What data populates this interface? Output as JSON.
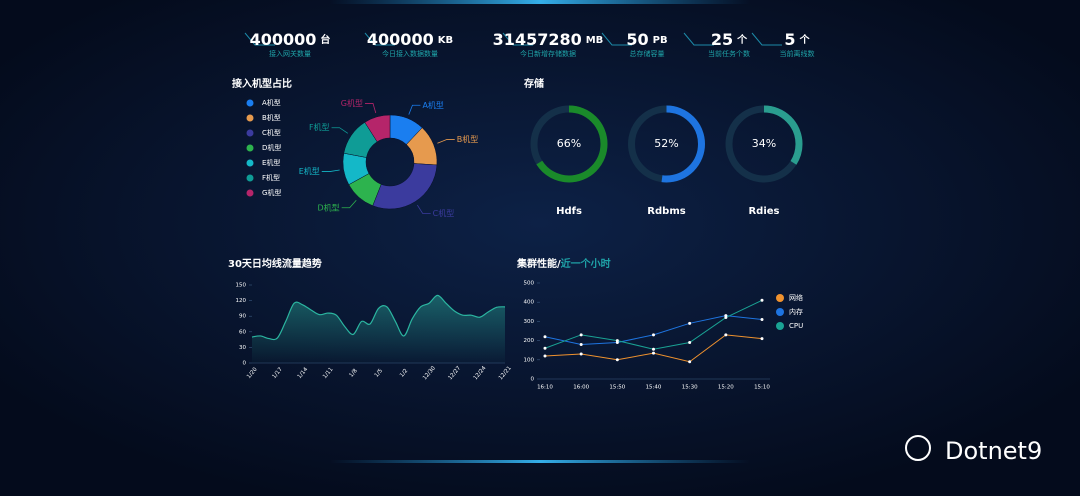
{
  "header": {
    "kpis": [
      {
        "value": "400000",
        "unit": "台",
        "label": "接入网关数量"
      },
      {
        "value": "400000",
        "unit": "KB",
        "label": "今日接入数据数量"
      },
      {
        "value": "31457280",
        "unit": "MB",
        "label": "今日新增存储数据"
      },
      {
        "value": "50",
        "unit": "PB",
        "label": "总存储容量"
      },
      {
        "value": "25",
        "unit": "个",
        "label": "当前任务个数"
      },
      {
        "value": "5",
        "unit": "个",
        "label": "当前离线数"
      }
    ],
    "watermark": "Dotnet9"
  },
  "chart_data": [
    {
      "type": "pie",
      "title": "接入机型占比",
      "categories": [
        "A机型",
        "B机型",
        "C机型",
        "D机型",
        "E机型",
        "F机型",
        "G机型"
      ],
      "values": [
        12,
        14,
        30,
        11,
        11,
        13,
        9
      ],
      "colors": [
        "#1a7ef0",
        "#e69a4e",
        "#3b3b9e",
        "#2db34e",
        "#14b8c8",
        "#0f9c96",
        "#b5256a"
      ]
    },
    {
      "type": "gauge",
      "title": "存储",
      "categories": [
        "Hdfs",
        "Rdbms",
        "Rdies"
      ],
      "values": [
        66,
        52,
        34
      ],
      "value_labels": [
        "66%",
        "52%",
        "34%"
      ],
      "colors": [
        "#1a8a2a",
        "#1e74e0",
        "#2a9d8f"
      ],
      "ylim": [
        0,
        100
      ]
    },
    {
      "type": "area",
      "title": "30天日均线流量趋势",
      "categories": [
        "1/20",
        null,
        null,
        "1/17",
        null,
        null,
        "1/14",
        null,
        null,
        "1/11",
        null,
        null,
        "1/8",
        null,
        null,
        "1/5",
        null,
        null,
        "1/2",
        null,
        null,
        "12/30",
        null,
        null,
        "12/27",
        null,
        null,
        "12/24",
        null,
        null,
        "12/21"
      ],
      "series": [
        {
          "name": null,
          "color": "#2bb5a0",
          "values": [
            50,
            52,
            47,
            48,
            80,
            115,
            112,
            102,
            93,
            96,
            92,
            70,
            55,
            80,
            75,
            105,
            108,
            80,
            52,
            85,
            108,
            115,
            130,
            115,
            100,
            92,
            92,
            88,
            98,
            107,
            108
          ]
        }
      ],
      "ylim": [
        0,
        150
      ],
      "yticks": [
        0,
        30,
        60,
        90,
        120,
        150
      ]
    },
    {
      "type": "line",
      "title": "集群性能/",
      "subtitle": "近一个小时",
      "categories": [
        "16:10",
        "16:00",
        "15:50",
        "15:40",
        "15:30",
        "15:20",
        "15:10"
      ],
      "series": [
        {
          "name": "网络",
          "color": "#f0922e",
          "values": [
            120,
            130,
            100,
            135,
            90,
            230,
            210
          ]
        },
        {
          "name": "内存",
          "color": "#1e74e0",
          "values": [
            220,
            180,
            190,
            230,
            290,
            330,
            310
          ]
        },
        {
          "name": "CPU",
          "color": "#1aa394",
          "values": [
            160,
            230,
            200,
            155,
            190,
            320,
            410
          ]
        }
      ],
      "ylim": [
        0,
        500
      ],
      "yticks": [
        0,
        100,
        200,
        300,
        400,
        500
      ]
    }
  ]
}
